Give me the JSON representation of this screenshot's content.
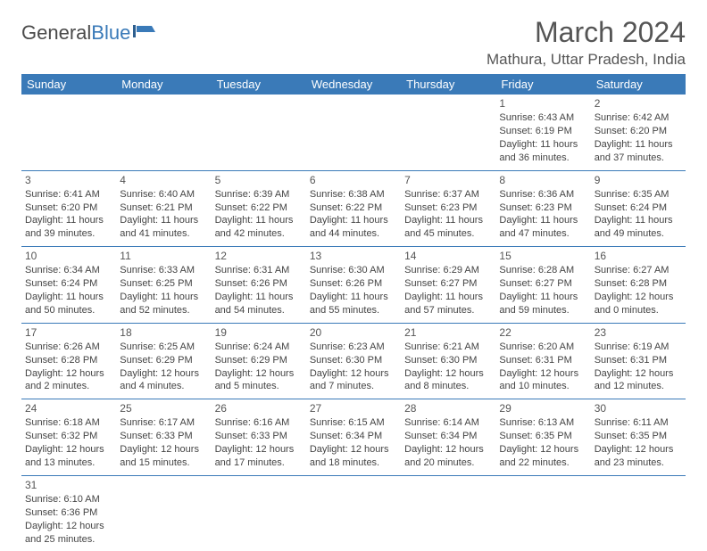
{
  "logo": {
    "text_a": "General",
    "text_b": "Blue",
    "color_a": "#4a4a4a",
    "color_b": "#3a7ab8"
  },
  "title": "March 2024",
  "location": "Mathura, Uttar Pradesh, India",
  "header_bg": "#3a7ab8",
  "header_fg": "#ffffff",
  "border_color": "#3a7ab8",
  "days_of_week": [
    "Sunday",
    "Monday",
    "Tuesday",
    "Wednesday",
    "Thursday",
    "Friday",
    "Saturday"
  ],
  "weeks": [
    [
      null,
      null,
      null,
      null,
      null,
      {
        "d": "1",
        "sr": "Sunrise: 6:43 AM",
        "ss": "Sunset: 6:19 PM",
        "dl1": "Daylight: 11 hours",
        "dl2": "and 36 minutes."
      },
      {
        "d": "2",
        "sr": "Sunrise: 6:42 AM",
        "ss": "Sunset: 6:20 PM",
        "dl1": "Daylight: 11 hours",
        "dl2": "and 37 minutes."
      }
    ],
    [
      {
        "d": "3",
        "sr": "Sunrise: 6:41 AM",
        "ss": "Sunset: 6:20 PM",
        "dl1": "Daylight: 11 hours",
        "dl2": "and 39 minutes."
      },
      {
        "d": "4",
        "sr": "Sunrise: 6:40 AM",
        "ss": "Sunset: 6:21 PM",
        "dl1": "Daylight: 11 hours",
        "dl2": "and 41 minutes."
      },
      {
        "d": "5",
        "sr": "Sunrise: 6:39 AM",
        "ss": "Sunset: 6:22 PM",
        "dl1": "Daylight: 11 hours",
        "dl2": "and 42 minutes."
      },
      {
        "d": "6",
        "sr": "Sunrise: 6:38 AM",
        "ss": "Sunset: 6:22 PM",
        "dl1": "Daylight: 11 hours",
        "dl2": "and 44 minutes."
      },
      {
        "d": "7",
        "sr": "Sunrise: 6:37 AM",
        "ss": "Sunset: 6:23 PM",
        "dl1": "Daylight: 11 hours",
        "dl2": "and 45 minutes."
      },
      {
        "d": "8",
        "sr": "Sunrise: 6:36 AM",
        "ss": "Sunset: 6:23 PM",
        "dl1": "Daylight: 11 hours",
        "dl2": "and 47 minutes."
      },
      {
        "d": "9",
        "sr": "Sunrise: 6:35 AM",
        "ss": "Sunset: 6:24 PM",
        "dl1": "Daylight: 11 hours",
        "dl2": "and 49 minutes."
      }
    ],
    [
      {
        "d": "10",
        "sr": "Sunrise: 6:34 AM",
        "ss": "Sunset: 6:24 PM",
        "dl1": "Daylight: 11 hours",
        "dl2": "and 50 minutes."
      },
      {
        "d": "11",
        "sr": "Sunrise: 6:33 AM",
        "ss": "Sunset: 6:25 PM",
        "dl1": "Daylight: 11 hours",
        "dl2": "and 52 minutes."
      },
      {
        "d": "12",
        "sr": "Sunrise: 6:31 AM",
        "ss": "Sunset: 6:26 PM",
        "dl1": "Daylight: 11 hours",
        "dl2": "and 54 minutes."
      },
      {
        "d": "13",
        "sr": "Sunrise: 6:30 AM",
        "ss": "Sunset: 6:26 PM",
        "dl1": "Daylight: 11 hours",
        "dl2": "and 55 minutes."
      },
      {
        "d": "14",
        "sr": "Sunrise: 6:29 AM",
        "ss": "Sunset: 6:27 PM",
        "dl1": "Daylight: 11 hours",
        "dl2": "and 57 minutes."
      },
      {
        "d": "15",
        "sr": "Sunrise: 6:28 AM",
        "ss": "Sunset: 6:27 PM",
        "dl1": "Daylight: 11 hours",
        "dl2": "and 59 minutes."
      },
      {
        "d": "16",
        "sr": "Sunrise: 6:27 AM",
        "ss": "Sunset: 6:28 PM",
        "dl1": "Daylight: 12 hours",
        "dl2": "and 0 minutes."
      }
    ],
    [
      {
        "d": "17",
        "sr": "Sunrise: 6:26 AM",
        "ss": "Sunset: 6:28 PM",
        "dl1": "Daylight: 12 hours",
        "dl2": "and 2 minutes."
      },
      {
        "d": "18",
        "sr": "Sunrise: 6:25 AM",
        "ss": "Sunset: 6:29 PM",
        "dl1": "Daylight: 12 hours",
        "dl2": "and 4 minutes."
      },
      {
        "d": "19",
        "sr": "Sunrise: 6:24 AM",
        "ss": "Sunset: 6:29 PM",
        "dl1": "Daylight: 12 hours",
        "dl2": "and 5 minutes."
      },
      {
        "d": "20",
        "sr": "Sunrise: 6:23 AM",
        "ss": "Sunset: 6:30 PM",
        "dl1": "Daylight: 12 hours",
        "dl2": "and 7 minutes."
      },
      {
        "d": "21",
        "sr": "Sunrise: 6:21 AM",
        "ss": "Sunset: 6:30 PM",
        "dl1": "Daylight: 12 hours",
        "dl2": "and 8 minutes."
      },
      {
        "d": "22",
        "sr": "Sunrise: 6:20 AM",
        "ss": "Sunset: 6:31 PM",
        "dl1": "Daylight: 12 hours",
        "dl2": "and 10 minutes."
      },
      {
        "d": "23",
        "sr": "Sunrise: 6:19 AM",
        "ss": "Sunset: 6:31 PM",
        "dl1": "Daylight: 12 hours",
        "dl2": "and 12 minutes."
      }
    ],
    [
      {
        "d": "24",
        "sr": "Sunrise: 6:18 AM",
        "ss": "Sunset: 6:32 PM",
        "dl1": "Daylight: 12 hours",
        "dl2": "and 13 minutes."
      },
      {
        "d": "25",
        "sr": "Sunrise: 6:17 AM",
        "ss": "Sunset: 6:33 PM",
        "dl1": "Daylight: 12 hours",
        "dl2": "and 15 minutes."
      },
      {
        "d": "26",
        "sr": "Sunrise: 6:16 AM",
        "ss": "Sunset: 6:33 PM",
        "dl1": "Daylight: 12 hours",
        "dl2": "and 17 minutes."
      },
      {
        "d": "27",
        "sr": "Sunrise: 6:15 AM",
        "ss": "Sunset: 6:34 PM",
        "dl1": "Daylight: 12 hours",
        "dl2": "and 18 minutes."
      },
      {
        "d": "28",
        "sr": "Sunrise: 6:14 AM",
        "ss": "Sunset: 6:34 PM",
        "dl1": "Daylight: 12 hours",
        "dl2": "and 20 minutes."
      },
      {
        "d": "29",
        "sr": "Sunrise: 6:13 AM",
        "ss": "Sunset: 6:35 PM",
        "dl1": "Daylight: 12 hours",
        "dl2": "and 22 minutes."
      },
      {
        "d": "30",
        "sr": "Sunrise: 6:11 AM",
        "ss": "Sunset: 6:35 PM",
        "dl1": "Daylight: 12 hours",
        "dl2": "and 23 minutes."
      }
    ],
    [
      {
        "d": "31",
        "sr": "Sunrise: 6:10 AM",
        "ss": "Sunset: 6:36 PM",
        "dl1": "Daylight: 12 hours",
        "dl2": "and 25 minutes."
      },
      null,
      null,
      null,
      null,
      null,
      null
    ]
  ]
}
